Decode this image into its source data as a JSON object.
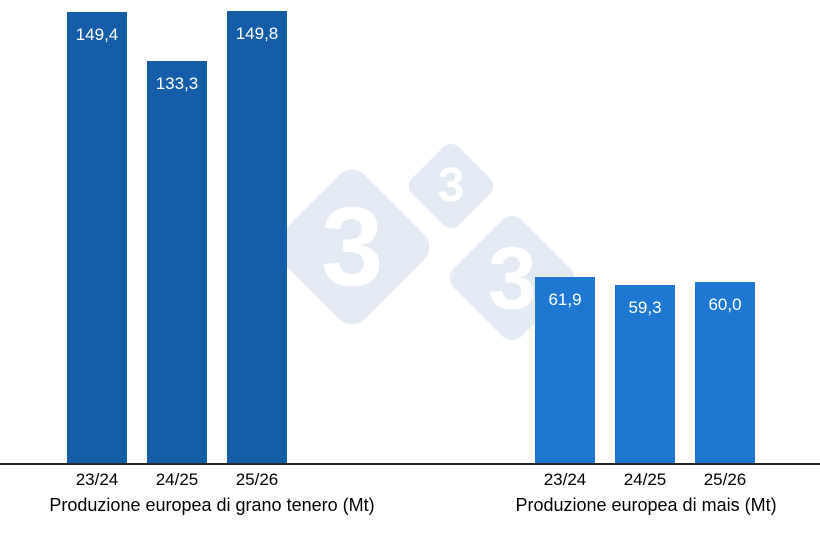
{
  "watermark": {
    "glyph": "3",
    "diamond_color": "#E3EAF3",
    "glyph_color": "#FFFFFF"
  },
  "chart_data": [
    {
      "type": "bar",
      "title": "Produzione europea di grano tenero (Mt)",
      "categories": [
        "23/24",
        "24/25",
        "25/26"
      ],
      "values": [
        149.4,
        133.3,
        149.8
      ],
      "value_labels": [
        "149,4",
        "133,3",
        "149,8"
      ],
      "bar_color": "#165DA9",
      "value_label_color": "#FFFFFF",
      "ylim": [
        0,
        153
      ],
      "grid": false,
      "legend": false
    },
    {
      "type": "bar",
      "title": "Produzione europea di mais (Mt)",
      "categories": [
        "23/24",
        "24/25",
        "25/26"
      ],
      "values": [
        61.9,
        59.3,
        60.0
      ],
      "value_labels": [
        "61,9",
        "59,3",
        "60,0"
      ],
      "bar_color": "#1E78D2",
      "value_label_color": "#FFFFFF",
      "ylim": [
        0,
        153
      ],
      "grid": false,
      "legend": false
    }
  ]
}
